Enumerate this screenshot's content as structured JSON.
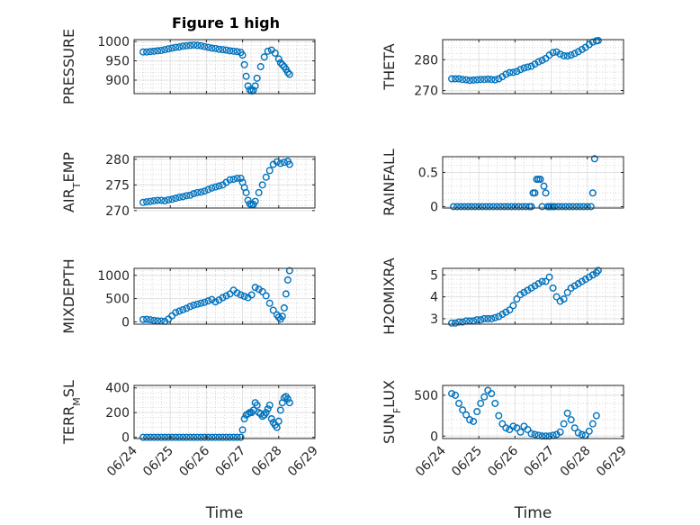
{
  "title": "Figure 1 high",
  "xlabel": "Time",
  "x_ticks": [
    "06/24",
    "06/25",
    "06/26",
    "06/27",
    "06/28",
    "06/29"
  ],
  "marker_color": "#0072BD",
  "chart_data": [
    {
      "type": "scatter",
      "ylabel": "PRESSURE",
      "ylim": [
        865,
        1005
      ],
      "yticks": [
        "900",
        "950",
        "1000"
      ],
      "grid": true,
      "x": [
        24.25,
        24.35,
        24.45,
        24.55,
        24.65,
        24.75,
        24.85,
        24.95,
        25.05,
        25.15,
        25.25,
        25.35,
        25.45,
        25.55,
        25.65,
        25.75,
        25.85,
        25.95,
        26.05,
        26.15,
        26.25,
        26.35,
        26.45,
        26.55,
        26.65,
        26.75,
        26.85,
        26.95,
        27.0,
        27.05,
        27.1,
        27.15,
        27.2,
        27.25,
        27.3,
        27.35,
        27.4,
        27.5,
        27.6,
        27.7,
        27.8,
        27.9,
        28.0,
        28.05,
        28.1,
        28.15,
        28.2,
        28.25,
        28.3
      ],
      "y": [
        973,
        973,
        974,
        975,
        976,
        977,
        979,
        981,
        983,
        985,
        986,
        988,
        989,
        990,
        991,
        990,
        989,
        987,
        985,
        983,
        982,
        980,
        979,
        978,
        976,
        975,
        974,
        972,
        965,
        940,
        910,
        885,
        875,
        872,
        874,
        885,
        905,
        935,
        960,
        975,
        978,
        970,
        955,
        945,
        940,
        935,
        928,
        920,
        915
      ]
    },
    {
      "type": "scatter",
      "ylabel": "THETA",
      "ylim": [
        269,
        286.5
      ],
      "yticks": [
        "270",
        "280"
      ],
      "grid": true,
      "x": [
        24.25,
        24.35,
        24.45,
        24.55,
        24.65,
        24.75,
        24.85,
        24.95,
        25.05,
        25.15,
        25.25,
        25.35,
        25.45,
        25.55,
        25.65,
        25.75,
        25.85,
        25.95,
        26.05,
        26.15,
        26.25,
        26.35,
        26.45,
        26.55,
        26.65,
        26.75,
        26.85,
        26.95,
        27.05,
        27.15,
        27.25,
        27.35,
        27.45,
        27.55,
        27.65,
        27.75,
        27.85,
        27.95,
        28.05,
        28.15,
        28.25,
        28.3
      ],
      "y": [
        273.8,
        273.8,
        273.8,
        273.6,
        273.5,
        273.3,
        273.4,
        273.5,
        273.6,
        273.6,
        273.7,
        273.6,
        273.5,
        273.8,
        274.5,
        275.3,
        275.8,
        275.9,
        276.2,
        276.8,
        277.3,
        277.6,
        277.9,
        278.6,
        279.3,
        279.8,
        280.4,
        281.5,
        282.3,
        282.5,
        281.8,
        281.3,
        281.2,
        281.5,
        282.0,
        282.6,
        283.3,
        284.0,
        284.9,
        285.7,
        286.1,
        286.2
      ]
    },
    {
      "type": "scatter",
      "ylabel": "AIR_TEMP",
      "ylim": [
        270.5,
        280.5
      ],
      "yticks": [
        "270",
        "275",
        "280"
      ],
      "grid": true,
      "x": [
        24.25,
        24.35,
        24.45,
        24.55,
        24.65,
        24.75,
        24.85,
        24.95,
        25.05,
        25.15,
        25.25,
        25.35,
        25.45,
        25.55,
        25.65,
        25.75,
        25.85,
        25.95,
        26.05,
        26.15,
        26.25,
        26.35,
        26.45,
        26.55,
        26.65,
        26.75,
        26.85,
        26.95,
        27.0,
        27.05,
        27.1,
        27.15,
        27.2,
        27.25,
        27.3,
        27.35,
        27.45,
        27.55,
        27.65,
        27.75,
        27.85,
        27.95,
        28.05,
        28.15,
        28.25,
        28.3
      ],
      "y": [
        271.6,
        271.7,
        271.8,
        271.9,
        272.0,
        272.0,
        271.9,
        272.1,
        272.2,
        272.4,
        272.6,
        272.7,
        272.9,
        273.0,
        273.3,
        273.5,
        273.6,
        273.8,
        274.1,
        274.4,
        274.6,
        274.8,
        275.0,
        275.5,
        276.0,
        276.1,
        276.3,
        276.3,
        275.5,
        274.5,
        273.5,
        272.0,
        271.3,
        271.1,
        271.2,
        271.8,
        273.5,
        275.0,
        276.5,
        277.8,
        279.0,
        279.5,
        279.2,
        279.4,
        279.6,
        279.0
      ]
    },
    {
      "type": "scatter",
      "ylabel": "RAINFALL",
      "ylim": [
        -0.02,
        0.73
      ],
      "yticks": [
        "0",
        "0.5"
      ],
      "grid": true,
      "x": [
        24.3,
        24.4,
        24.5,
        24.6,
        24.7,
        24.8,
        24.9,
        25.0,
        25.1,
        25.2,
        25.3,
        25.4,
        25.5,
        25.6,
        25.7,
        25.8,
        25.9,
        26.0,
        26.1,
        26.2,
        26.3,
        26.4,
        26.45,
        26.5,
        26.55,
        26.6,
        26.65,
        26.7,
        26.75,
        26.8,
        26.85,
        26.9,
        26.95,
        27.0,
        27.05,
        27.1,
        27.2,
        27.3,
        27.4,
        27.5,
        27.6,
        27.7,
        27.8,
        27.9,
        28.0,
        28.1,
        28.15,
        28.2
      ],
      "y": [
        0,
        0,
        0,
        0,
        0,
        0,
        0,
        0,
        0,
        0,
        0,
        0,
        0,
        0,
        0,
        0,
        0,
        0,
        0,
        0,
        0,
        0,
        0,
        0.2,
        0.2,
        0.4,
        0.4,
        0.4,
        0,
        0.3,
        0.2,
        0,
        0,
        0,
        0,
        0,
        0,
        0,
        0,
        0,
        0,
        0,
        0,
        0,
        0,
        0,
        0.2,
        0.7
      ]
    },
    {
      "type": "scatter",
      "ylabel": "MIXDEPTH",
      "ylim": [
        -50,
        1150
      ],
      "yticks": [
        "0",
        "500",
        "1000"
      ],
      "grid": true,
      "x": [
        24.25,
        24.35,
        24.45,
        24.55,
        24.65,
        24.75,
        24.85,
        24.95,
        25.05,
        25.15,
        25.25,
        25.35,
        25.45,
        25.55,
        25.65,
        25.75,
        25.85,
        25.95,
        26.05,
        26.15,
        26.25,
        26.35,
        26.45,
        26.55,
        26.65,
        26.75,
        26.85,
        26.95,
        27.05,
        27.15,
        27.25,
        27.35,
        27.45,
        27.55,
        27.65,
        27.75,
        27.85,
        27.95,
        28.0,
        28.05,
        28.1,
        28.15,
        28.2,
        28.25,
        28.3
      ],
      "y": [
        50,
        55,
        45,
        30,
        20,
        15,
        10,
        60,
        130,
        200,
        230,
        260,
        290,
        330,
        360,
        380,
        400,
        420,
        450,
        480,
        430,
        470,
        520,
        560,
        600,
        680,
        620,
        580,
        550,
        520,
        580,
        740,
        700,
        650,
        560,
        400,
        250,
        150,
        100,
        60,
        120,
        300,
        600,
        900,
        1100
      ]
    },
    {
      "type": "scatter",
      "ylabel": "H2OMIXRA",
      "ylim": [
        2.75,
        5.3
      ],
      "yticks": [
        "3",
        "4",
        "5"
      ],
      "grid": true,
      "x": [
        24.25,
        24.35,
        24.45,
        24.55,
        24.65,
        24.75,
        24.85,
        24.95,
        25.05,
        25.15,
        25.25,
        25.35,
        25.45,
        25.55,
        25.65,
        25.75,
        25.85,
        25.95,
        26.05,
        26.15,
        26.25,
        26.35,
        26.45,
        26.55,
        26.65,
        26.75,
        26.85,
        26.95,
        27.05,
        27.15,
        27.25,
        27.35,
        27.45,
        27.55,
        27.65,
        27.75,
        27.85,
        27.95,
        28.05,
        28.15,
        28.25,
        28.3
      ],
      "y": [
        2.8,
        2.8,
        2.85,
        2.85,
        2.9,
        2.9,
        2.9,
        2.95,
        2.95,
        3.0,
        3.0,
        3.0,
        3.05,
        3.1,
        3.2,
        3.3,
        3.4,
        3.6,
        3.9,
        4.1,
        4.2,
        4.3,
        4.4,
        4.5,
        4.6,
        4.7,
        4.7,
        4.9,
        4.4,
        4.0,
        3.8,
        3.9,
        4.2,
        4.4,
        4.5,
        4.6,
        4.7,
        4.8,
        4.9,
        5.0,
        5.1,
        5.2
      ]
    },
    {
      "type": "scatter",
      "ylabel": "TERR_MSL",
      "ylim": [
        -10,
        420
      ],
      "yticks": [
        "0",
        "200",
        "400"
      ],
      "grid": true,
      "x": [
        24.25,
        24.35,
        24.45,
        24.55,
        24.65,
        24.75,
        24.85,
        24.95,
        25.05,
        25.15,
        25.25,
        25.35,
        25.45,
        25.55,
        25.65,
        25.75,
        25.85,
        25.95,
        26.05,
        26.15,
        26.25,
        26.35,
        26.45,
        26.55,
        26.65,
        26.75,
        26.85,
        26.95,
        27.0,
        27.05,
        27.1,
        27.15,
        27.2,
        27.25,
        27.3,
        27.35,
        27.4,
        27.45,
        27.5,
        27.55,
        27.6,
        27.65,
        27.7,
        27.75,
        27.8,
        27.85,
        27.9,
        27.95,
        28.0,
        28.05,
        28.1,
        28.15,
        28.2,
        28.25,
        28.3
      ],
      "y": [
        0,
        0,
        0,
        0,
        0,
        0,
        0,
        0,
        0,
        0,
        0,
        0,
        0,
        0,
        0,
        0,
        0,
        0,
        0,
        0,
        0,
        0,
        0,
        0,
        0,
        0,
        0,
        0,
        60,
        150,
        180,
        190,
        200,
        200,
        220,
        280,
        260,
        200,
        190,
        170,
        180,
        200,
        230,
        260,
        150,
        120,
        100,
        80,
        130,
        220,
        280,
        320,
        330,
        310,
        280
      ]
    },
    {
      "type": "scatter",
      "ylabel": "SUN_FLUX",
      "ylim": [
        -30,
        620
      ],
      "yticks": [
        "0",
        "500"
      ],
      "grid": true,
      "x": [
        24.25,
        24.35,
        24.45,
        24.55,
        24.65,
        24.75,
        24.85,
        24.95,
        25.05,
        25.15,
        25.25,
        25.35,
        25.45,
        25.55,
        25.65,
        25.75,
        25.85,
        25.95,
        26.05,
        26.15,
        26.25,
        26.35,
        26.45,
        26.55,
        26.65,
        26.75,
        26.85,
        26.95,
        27.05,
        27.15,
        27.25,
        27.35,
        27.45,
        27.55,
        27.65,
        27.75,
        27.85,
        27.95,
        28.05,
        28.15,
        28.25
      ],
      "y": [
        520,
        500,
        400,
        320,
        260,
        200,
        180,
        300,
        400,
        480,
        560,
        520,
        400,
        250,
        150,
        100,
        80,
        120,
        100,
        50,
        120,
        80,
        30,
        20,
        10,
        0,
        0,
        0,
        10,
        20,
        50,
        150,
        280,
        200,
        100,
        40,
        20,
        10,
        60,
        150,
        250
      ]
    }
  ]
}
